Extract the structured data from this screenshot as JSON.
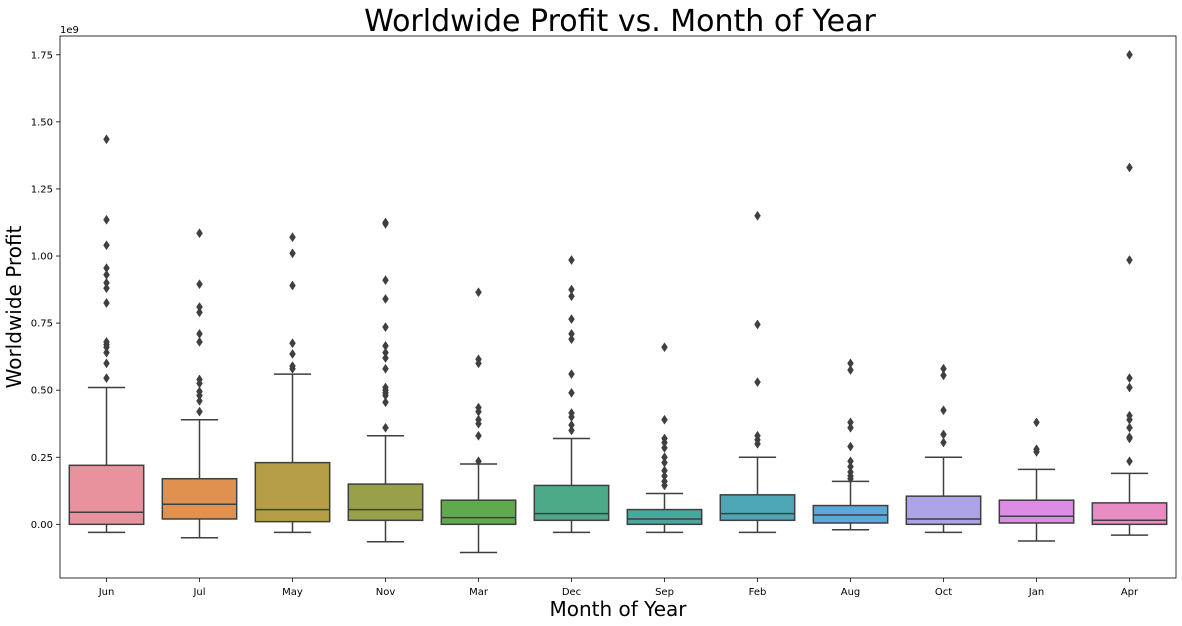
{
  "chart_data": {
    "type": "box",
    "title": "Worldwide Profit vs. Month of Year",
    "xlabel": "Month of Year",
    "ylabel": "Worldwide Profit",
    "y_offset_label": "1e9",
    "y_multiplier": 1000000000,
    "ylim": [
      -0.2,
      1.82
    ],
    "y_ticks": [
      0.0,
      0.25,
      0.5,
      0.75,
      1.0,
      1.25,
      1.5,
      1.75
    ],
    "y_tick_labels": [
      "0.00",
      "0.25",
      "0.50",
      "0.75",
      "1.00",
      "1.25",
      "1.50",
      "1.75"
    ],
    "grid": false,
    "legend": "none",
    "categories": [
      "Jun",
      "Jul",
      "May",
      "Nov",
      "Mar",
      "Dec",
      "Sep",
      "Feb",
      "Aug",
      "Oct",
      "Jan",
      "Apr"
    ],
    "boxes": [
      {
        "category": "Jun",
        "color": "#e8929e",
        "whisker_low": -0.03,
        "q1": 0.0,
        "median": 0.045,
        "q3": 0.22,
        "whisker_high": 0.51,
        "outliers": [
          1.435,
          1.135,
          1.04,
          0.955,
          0.93,
          0.9,
          0.88,
          0.825,
          0.68,
          0.67,
          0.66,
          0.64,
          0.6,
          0.545
        ]
      },
      {
        "category": "Jul",
        "color": "#e0904f",
        "whisker_low": -0.05,
        "q1": 0.02,
        "median": 0.075,
        "q3": 0.17,
        "whisker_high": 0.39,
        "outliers": [
          1.085,
          0.895,
          0.81,
          0.79,
          0.71,
          0.68,
          0.54,
          0.525,
          0.495,
          0.48,
          0.46,
          0.42
        ]
      },
      {
        "category": "May",
        "color": "#b59e47",
        "whisker_low": -0.03,
        "q1": 0.01,
        "median": 0.055,
        "q3": 0.23,
        "whisker_high": 0.56,
        "outliers": [
          1.07,
          1.01,
          0.89,
          0.675,
          0.635,
          0.59,
          0.58
        ]
      },
      {
        "category": "Nov",
        "color": "#99a04b",
        "whisker_low": -0.065,
        "q1": 0.015,
        "median": 0.055,
        "q3": 0.15,
        "whisker_high": 0.33,
        "outliers": [
          1.125,
          1.12,
          0.91,
          0.84,
          0.735,
          0.665,
          0.64,
          0.62,
          0.58,
          0.51,
          0.5,
          0.49,
          0.48,
          0.455,
          0.36
        ]
      },
      {
        "category": "Mar",
        "color": "#60aa4e",
        "whisker_low": -0.105,
        "q1": 0.0,
        "median": 0.025,
        "q3": 0.09,
        "whisker_high": 0.225,
        "outliers": [
          0.865,
          0.615,
          0.6,
          0.435,
          0.42,
          0.39,
          0.375,
          0.33,
          0.235
        ]
      },
      {
        "category": "Dec",
        "color": "#4caa88",
        "whisker_low": -0.03,
        "q1": 0.015,
        "median": 0.04,
        "q3": 0.145,
        "whisker_high": 0.32,
        "outliers": [
          0.985,
          0.875,
          0.85,
          0.765,
          0.71,
          0.69,
          0.56,
          0.49,
          0.415,
          0.4,
          0.37,
          0.35
        ]
      },
      {
        "category": "Sep",
        "color": "#4ba69e",
        "whisker_low": -0.03,
        "q1": 0.0,
        "median": 0.02,
        "q3": 0.055,
        "whisker_high": 0.115,
        "outliers": [
          0.66,
          0.39,
          0.32,
          0.305,
          0.285,
          0.25,
          0.23,
          0.2,
          0.18,
          0.16,
          0.145
        ]
      },
      {
        "category": "Feb",
        "color": "#4ea7b4",
        "whisker_low": -0.03,
        "q1": 0.015,
        "median": 0.04,
        "q3": 0.11,
        "whisker_high": 0.25,
        "outliers": [
          1.15,
          0.745,
          0.53,
          0.33,
          0.315,
          0.3
        ]
      },
      {
        "category": "Aug",
        "color": "#5aa8dc",
        "whisker_low": -0.02,
        "q1": 0.005,
        "median": 0.035,
        "q3": 0.07,
        "whisker_high": 0.16,
        "outliers": [
          0.6,
          0.575,
          0.38,
          0.36,
          0.29,
          0.235,
          0.215,
          0.195,
          0.18,
          0.17
        ]
      },
      {
        "category": "Oct",
        "color": "#aca4e6",
        "whisker_low": -0.03,
        "q1": 0.0,
        "median": 0.02,
        "q3": 0.105,
        "whisker_high": 0.25,
        "outliers": [
          0.58,
          0.555,
          0.425,
          0.335,
          0.305
        ]
      },
      {
        "category": "Jan",
        "color": "#dc8ce2",
        "whisker_low": -0.062,
        "q1": 0.005,
        "median": 0.03,
        "q3": 0.09,
        "whisker_high": 0.205,
        "outliers": [
          0.38,
          0.28,
          0.27
        ]
      },
      {
        "category": "Apr",
        "color": "#e88cc4",
        "whisker_low": -0.04,
        "q1": 0.0,
        "median": 0.015,
        "q3": 0.08,
        "whisker_high": 0.19,
        "outliers": [
          1.75,
          1.33,
          0.985,
          0.545,
          0.51,
          0.405,
          0.39,
          0.36,
          0.325,
          0.32,
          0.235
        ]
      }
    ]
  }
}
